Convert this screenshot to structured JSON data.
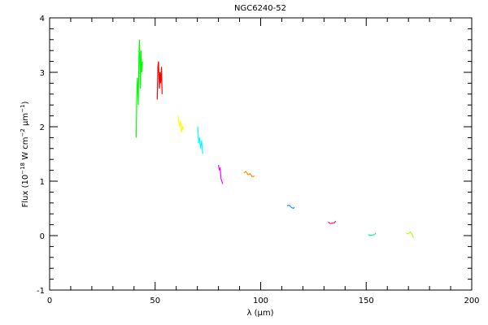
{
  "chart_data": {
    "type": "line",
    "title": "NGC6240-52",
    "xlabel": "λ (μm)",
    "ylabel": [
      "Flux (10",
      "−18",
      " W cm",
      "−2",
      " μm",
      "−1",
      ")"
    ],
    "xlim": [
      0,
      200
    ],
    "xticks": [
      0,
      50,
      100,
      150,
      200
    ],
    "ylim": [
      -1,
      4
    ],
    "yticks": [
      -1,
      0,
      1,
      2,
      3,
      4
    ],
    "series": [
      {
        "color": "#00ff00",
        "x": [
          41.0,
          41.3,
          41.6,
          42.0,
          42.3,
          42.6,
          43.0,
          43.3,
          43.6,
          44.0
        ],
        "values": [
          1.8,
          2.6,
          2.9,
          2.4,
          3.3,
          3.6,
          2.7,
          3.4,
          3.0,
          3.2
        ]
      },
      {
        "color": "#ff0000",
        "x": [
          51.0,
          51.3,
          51.6,
          52.0,
          52.3,
          52.6,
          53.0,
          53.3
        ],
        "values": [
          2.5,
          3.1,
          3.2,
          2.7,
          3.0,
          2.8,
          3.1,
          2.6
        ]
      },
      {
        "color": "#ffff00",
        "x": [
          61.0,
          61.5,
          62.0,
          62.5,
          63.0,
          63.5
        ],
        "values": [
          2.2,
          2.0,
          2.1,
          1.9,
          2.0,
          1.95
        ]
      },
      {
        "color": "#00ffff",
        "x": [
          70.2,
          70.6,
          71.0,
          71.5,
          72.0,
          72.5
        ],
        "values": [
          2.0,
          1.7,
          1.8,
          1.6,
          1.75,
          1.5
        ]
      },
      {
        "color": "#ff00ff",
        "x": [
          80.0,
          80.4,
          80.8,
          81.2,
          81.6,
          82.0
        ],
        "values": [
          1.3,
          1.2,
          1.25,
          1.05,
          1.0,
          0.95
        ]
      },
      {
        "color": "#ff8c00",
        "x": [
          92,
          93,
          94,
          95,
          96,
          97
        ],
        "values": [
          1.15,
          1.18,
          1.12,
          1.14,
          1.08,
          1.1
        ]
      },
      {
        "color": "#1e90ff",
        "x": [
          112.5,
          113.5,
          114.5,
          115.5,
          116
        ],
        "values": [
          0.55,
          0.56,
          0.52,
          0.5,
          0.52
        ]
      },
      {
        "color": "#ff1493",
        "x": [
          132,
          133,
          134,
          135,
          135.5
        ],
        "values": [
          0.25,
          0.22,
          0.23,
          0.24,
          0.27
        ]
      },
      {
        "color": "#00fa9a",
        "x": [
          151,
          152,
          153,
          154,
          154.5
        ],
        "values": [
          0.02,
          0.0,
          0.01,
          0.02,
          0.05
        ]
      },
      {
        "color": "#adff2f",
        "x": [
          169,
          170,
          171,
          172,
          172.5
        ],
        "values": [
          0.05,
          0.03,
          0.07,
          0.0,
          -0.05
        ]
      }
    ]
  }
}
